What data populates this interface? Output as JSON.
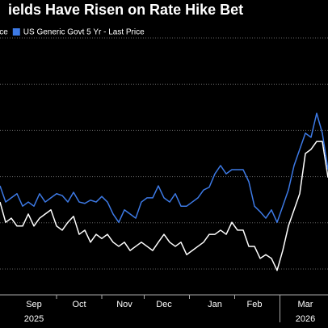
{
  "chart_data": {
    "type": "line",
    "title": "ields Have Risen on Rate Hike Bet",
    "categories": [
      null,
      null,
      null,
      null,
      null,
      null,
      "Sep",
      null,
      null,
      null,
      null,
      null,
      null,
      null,
      "Oct",
      null,
      null,
      null,
      null,
      null,
      null,
      null,
      "Nov",
      null,
      null,
      null,
      null,
      null,
      null,
      "Dec",
      null,
      null,
      null,
      null,
      null,
      null,
      null,
      null,
      "Jan",
      null,
      null,
      null,
      null,
      null,
      null,
      "Feb",
      null,
      null,
      null,
      null,
      null,
      null,
      null,
      null,
      "Mar",
      null,
      null,
      null,
      null
    ],
    "years": [
      {
        "label": "2025",
        "category": 6
      },
      {
        "label": "2026",
        "category": 54
      }
    ],
    "series": [
      {
        "name": "ice",
        "color": "#ffffff",
        "values": [
          2.45,
          2.01,
          2.1,
          1.93,
          1.93,
          2.19,
          1.93,
          2.1,
          2.19,
          2.28,
          1.93,
          1.84,
          2.01,
          2.14,
          1.75,
          1.84,
          1.58,
          1.75,
          1.66,
          1.75,
          1.58,
          1.49,
          1.58,
          1.4,
          1.49,
          1.58,
          1.49,
          1.4,
          1.58,
          1.75,
          1.58,
          1.49,
          1.58,
          1.31,
          1.4,
          1.49,
          1.58,
          1.75,
          1.75,
          1.84,
          1.75,
          2.01,
          1.84,
          1.84,
          1.49,
          1.49,
          1.23,
          1.31,
          1.23,
          0.97,
          1.4,
          1.93,
          2.28,
          2.63,
          3.5,
          3.59,
          3.76,
          3.76,
          2.98
        ]
      },
      {
        "name": "US Generic Govt 5 Yr - Last Price",
        "color": "#3d7ae6",
        "values": [
          2.8,
          2.45,
          2.54,
          2.63,
          2.36,
          2.45,
          2.36,
          2.63,
          2.45,
          2.54,
          2.63,
          2.59,
          2.45,
          2.66,
          2.45,
          2.42,
          2.49,
          2.45,
          2.57,
          2.45,
          2.19,
          2.01,
          2.28,
          2.19,
          2.1,
          2.45,
          2.54,
          2.54,
          2.8,
          2.54,
          2.45,
          2.63,
          2.36,
          2.36,
          2.45,
          2.54,
          2.71,
          2.77,
          3.06,
          3.24,
          3.06,
          3.15,
          3.15,
          3.15,
          2.89,
          2.36,
          2.24,
          2.1,
          2.28,
          2.01,
          2.36,
          2.71,
          3.24,
          3.59,
          3.94,
          3.85,
          4.37,
          3.94,
          3.15
        ]
      }
    ],
    "ylim": [
      0.44,
      6.21
    ],
    "yticks": [
      1,
      2,
      3,
      4,
      5,
      6
    ],
    "grid": true
  }
}
